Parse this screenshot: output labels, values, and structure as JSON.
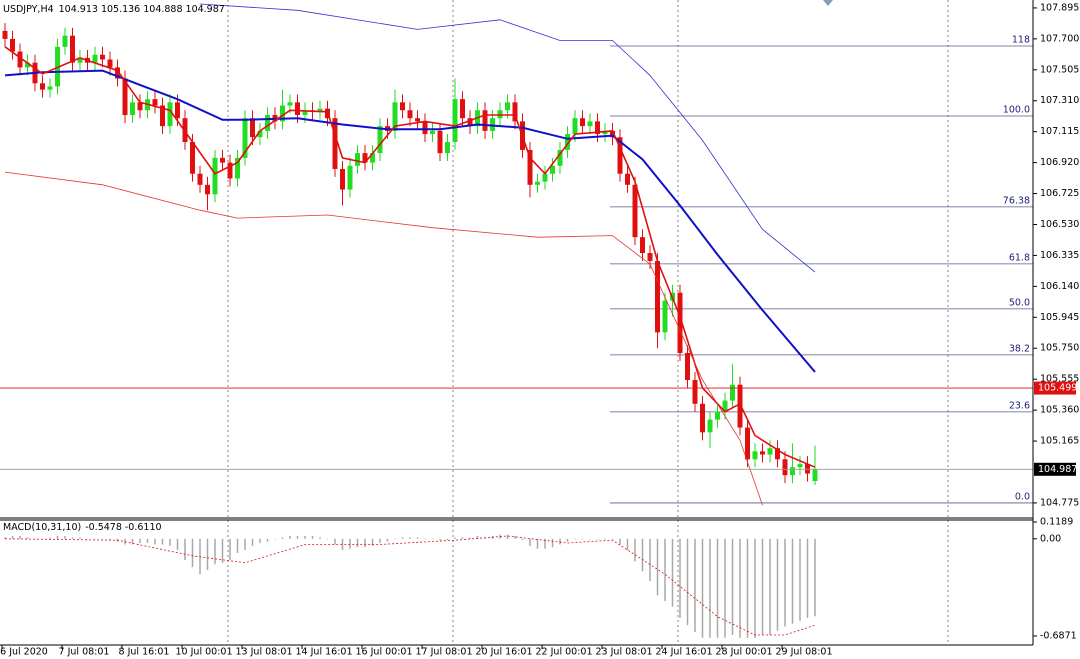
{
  "chart_data": [
    {
      "type": "candlestick",
      "title": "USDJPY,H4",
      "categories": [
        null,
        null,
        "6 Jul 2020",
        null,
        null,
        null,
        null,
        null,
        null,
        null,
        "7 Jul 08:01",
        null,
        null,
        null,
        null,
        null,
        null,
        null,
        "8 Jul 16:01",
        null,
        null,
        null,
        null,
        null,
        null,
        null,
        "10 Jul 00:01",
        null,
        null,
        null,
        null,
        null,
        null,
        null,
        "13 Jul 08:01",
        null,
        null,
        null,
        null,
        null,
        null,
        null,
        "14 Jul 16:01",
        null,
        null,
        null,
        null,
        null,
        null,
        null,
        "16 Jul 00:01",
        null,
        null,
        null,
        null,
        null,
        null,
        null,
        "17 Jul 08:01",
        null,
        null,
        null,
        null,
        null,
        null,
        null,
        "20 Jul 16:01",
        null,
        null,
        null,
        null,
        null,
        null,
        null,
        "22 Jul 00:01",
        null,
        null,
        null,
        null,
        null,
        null,
        null,
        "23 Jul 08:01",
        null,
        null,
        null,
        null,
        null,
        null,
        null,
        "24 Jul 16:01",
        null,
        null,
        null,
        null,
        null,
        null,
        null,
        "28 Jul 00:01",
        null,
        null,
        null,
        null,
        null,
        null,
        null,
        "29 Jul 08:01",
        null,
        null
      ],
      "ohlc": [
        [
          107.75,
          107.8,
          107.65,
          107.7
        ],
        [
          107.7,
          107.75,
          107.57,
          107.62
        ],
        [
          107.62,
          107.67,
          107.47,
          107.52
        ],
        [
          107.52,
          107.6,
          107.47,
          107.55
        ],
        [
          107.55,
          107.6,
          107.37,
          107.42
        ],
        [
          107.42,
          107.47,
          107.33,
          107.38
        ],
        [
          107.38,
          107.45,
          107.33,
          107.4
        ],
        [
          107.4,
          107.7,
          107.35,
          107.65
        ],
        [
          107.65,
          107.77,
          107.6,
          107.72
        ],
        [
          107.72,
          107.77,
          107.5,
          107.55
        ],
        [
          107.55,
          107.63,
          107.5,
          107.58
        ],
        [
          107.58,
          107.63,
          107.5,
          107.55
        ],
        [
          107.55,
          107.65,
          107.5,
          107.6
        ],
        [
          107.6,
          107.65,
          107.52,
          107.57
        ],
        [
          107.57,
          107.62,
          107.47,
          107.52
        ],
        [
          107.52,
          107.57,
          107.4,
          107.45
        ],
        [
          107.45,
          107.5,
          107.17,
          107.22
        ],
        [
          107.22,
          107.35,
          107.17,
          107.3
        ],
        [
          107.3,
          107.35,
          107.2,
          107.25
        ],
        [
          107.25,
          107.37,
          107.2,
          107.32
        ],
        [
          107.32,
          107.37,
          107.23,
          107.28
        ],
        [
          107.28,
          107.33,
          107.1,
          107.15
        ],
        [
          107.15,
          107.35,
          107.1,
          107.3
        ],
        [
          107.3,
          107.35,
          107.15,
          107.2
        ],
        [
          107.2,
          107.25,
          107.0,
          107.05
        ],
        [
          107.05,
          107.1,
          106.8,
          106.85
        ],
        [
          106.85,
          106.9,
          106.73,
          106.78
        ],
        [
          106.78,
          106.83,
          106.62,
          106.72
        ],
        [
          106.72,
          107.0,
          106.67,
          106.95
        ],
        [
          106.95,
          107.0,
          106.87,
          106.92
        ],
        [
          106.92,
          106.97,
          106.77,
          106.82
        ],
        [
          106.82,
          107.0,
          106.77,
          106.95
        ],
        [
          106.95,
          107.25,
          106.9,
          107.2
        ],
        [
          107.2,
          107.25,
          107.03,
          107.08
        ],
        [
          107.08,
          107.17,
          107.03,
          107.12
        ],
        [
          107.12,
          107.27,
          107.07,
          107.22
        ],
        [
          107.22,
          107.27,
          107.13,
          107.18
        ],
        [
          107.18,
          107.38,
          107.13,
          107.28
        ],
        [
          107.28,
          107.35,
          107.23,
          107.3
        ],
        [
          107.3,
          107.35,
          107.17,
          107.22
        ],
        [
          107.22,
          107.3,
          107.17,
          107.25
        ],
        [
          107.25,
          107.3,
          107.19,
          107.24
        ],
        [
          107.24,
          107.31,
          107.19,
          107.26
        ],
        [
          107.26,
          107.31,
          107.15,
          107.2
        ],
        [
          107.2,
          107.25,
          106.83,
          106.88
        ],
        [
          106.88,
          106.93,
          106.65,
          106.75
        ],
        [
          106.75,
          106.95,
          106.7,
          106.9
        ],
        [
          106.9,
          107.03,
          106.85,
          106.98
        ],
        [
          106.98,
          107.03,
          106.87,
          106.92
        ],
        [
          106.92,
          107.03,
          106.87,
          106.98
        ],
        [
          106.98,
          107.2,
          106.93,
          107.15
        ],
        [
          107.15,
          107.2,
          107.07,
          107.12
        ],
        [
          107.12,
          107.38,
          107.07,
          107.3
        ],
        [
          107.3,
          107.35,
          107.2,
          107.25
        ],
        [
          107.25,
          107.3,
          107.15,
          107.2
        ],
        [
          107.2,
          107.25,
          107.13,
          107.18
        ],
        [
          107.18,
          107.23,
          107.05,
          107.1
        ],
        [
          107.1,
          107.17,
          107.05,
          107.12
        ],
        [
          107.12,
          107.17,
          106.93,
          106.98
        ],
        [
          106.98,
          107.1,
          106.93,
          107.05
        ],
        [
          107.05,
          107.45,
          107.0,
          107.32
        ],
        [
          107.32,
          107.37,
          107.15,
          107.2
        ],
        [
          107.2,
          107.25,
          107.1,
          107.15
        ],
        [
          107.15,
          107.3,
          107.1,
          107.25
        ],
        [
          107.25,
          107.3,
          107.07,
          107.12
        ],
        [
          107.12,
          107.25,
          107.07,
          107.2
        ],
        [
          107.2,
          107.3,
          107.15,
          107.25
        ],
        [
          107.25,
          107.35,
          107.2,
          107.3
        ],
        [
          107.3,
          107.35,
          107.13,
          107.18
        ],
        [
          107.18,
          107.23,
          106.95,
          107.0
        ],
        [
          107.0,
          107.05,
          106.7,
          106.78
        ],
        [
          106.78,
          106.85,
          106.73,
          106.8
        ],
        [
          106.8,
          106.9,
          106.75,
          106.85
        ],
        [
          106.85,
          106.95,
          106.8,
          106.9
        ],
        [
          106.9,
          107.05,
          106.85,
          107.0
        ],
        [
          107.0,
          107.15,
          106.95,
          107.1
        ],
        [
          107.1,
          107.25,
          107.05,
          107.2
        ],
        [
          107.2,
          107.25,
          107.1,
          107.15
        ],
        [
          107.15,
          107.23,
          107.1,
          107.18
        ],
        [
          107.18,
          107.23,
          107.05,
          107.1
        ],
        [
          107.1,
          107.17,
          107.05,
          107.12
        ],
        [
          107.12,
          107.17,
          107.03,
          107.08
        ],
        [
          107.08,
          107.13,
          106.8,
          106.85
        ],
        [
          106.85,
          106.9,
          106.73,
          106.78
        ],
        [
          106.78,
          106.83,
          106.4,
          106.45
        ],
        [
          106.45,
          106.5,
          106.3,
          106.35
        ],
        [
          106.35,
          106.4,
          106.25,
          106.3
        ],
        [
          106.3,
          106.35,
          105.75,
          105.85
        ],
        [
          105.85,
          106.1,
          105.8,
          106.05
        ],
        [
          106.05,
          106.15,
          105.95,
          106.1
        ],
        [
          106.1,
          106.15,
          105.67,
          105.72
        ],
        [
          105.72,
          105.77,
          105.5,
          105.55
        ],
        [
          105.55,
          105.6,
          105.35,
          105.4
        ],
        [
          105.4,
          105.45,
          105.17,
          105.22
        ],
        [
          105.22,
          105.35,
          105.12,
          105.3
        ],
        [
          105.3,
          105.4,
          105.25,
          105.35
        ],
        [
          105.35,
          105.47,
          105.3,
          105.42
        ],
        [
          105.42,
          105.65,
          105.37,
          105.52
        ],
        [
          105.52,
          105.57,
          105.2,
          105.25
        ],
        [
          105.25,
          105.3,
          105.0,
          105.05
        ],
        [
          105.05,
          105.15,
          105.0,
          105.1
        ],
        [
          105.1,
          105.15,
          105.03,
          105.08
        ],
        [
          105.08,
          105.17,
          105.03,
          105.12
        ],
        [
          105.12,
          105.17,
          105.0,
          105.05
        ],
        [
          105.05,
          105.1,
          104.9,
          104.95
        ],
        [
          104.95,
          105.15,
          104.9,
          105.0
        ],
        [
          105.0,
          105.07,
          104.95,
          105.02
        ],
        [
          105.02,
          105.07,
          104.91,
          104.96
        ],
        [
          104.913,
          105.136,
          104.888,
          104.987
        ]
      ],
      "up_color": "#22dd22",
      "down_color": "#e01010",
      "lines": [
        {
          "color": "#1010c8",
          "width": 2,
          "x": [
            0,
            5,
            13,
            18,
            23,
            29,
            32,
            39,
            45,
            51,
            58,
            63,
            69,
            75,
            81,
            85,
            90,
            95,
            101,
            108
          ],
          "values": [
            107.47,
            107.49,
            107.5,
            107.41,
            107.32,
            107.19,
            107.19,
            107.2,
            107.16,
            107.13,
            107.13,
            107.16,
            107.14,
            107.07,
            107.09,
            106.94,
            106.65,
            106.34,
            105.99,
            105.6
          ]
        },
        {
          "color": "#e01010",
          "width": 1.6,
          "x": [
            0,
            5,
            10,
            15,
            18,
            22,
            25,
            28,
            31,
            34,
            38,
            43,
            45,
            48,
            52,
            56,
            60,
            64,
            68,
            70,
            72,
            76,
            81,
            84,
            87,
            90,
            93,
            96,
            98,
            100,
            104,
            108
          ],
          "values": [
            107.65,
            107.48,
            107.58,
            107.5,
            107.3,
            107.25,
            107.05,
            106.85,
            106.92,
            107.12,
            107.25,
            107.24,
            106.95,
            106.92,
            107.15,
            107.18,
            107.15,
            107.22,
            107.22,
            106.95,
            106.85,
            107.1,
            107.12,
            106.8,
            106.3,
            105.95,
            105.5,
            105.35,
            105.4,
            105.2,
            105.08,
            105.0
          ]
        },
        {
          "color": "#3030d8",
          "width": 0.8,
          "x": [
            26,
            39,
            55,
            66,
            74,
            81,
            86,
            93,
            101,
            108
          ],
          "values": [
            107.92,
            107.88,
            107.76,
            107.82,
            107.69,
            107.69,
            107.47,
            107.06,
            106.5,
            106.23
          ]
        },
        {
          "color": "#e83030",
          "width": 0.8,
          "x": [
            0,
            13,
            26,
            31,
            43,
            57,
            71,
            81,
            86,
            93,
            98,
            101
          ],
          "values": [
            106.86,
            106.78,
            106.62,
            106.57,
            106.59,
            106.51,
            106.45,
            106.46,
            106.28,
            105.55,
            105.17,
            104.76
          ]
        }
      ],
      "levels": [
        {
          "value": 107.655,
          "label": "118"
        },
        {
          "value": 107.214,
          "label": "100.0"
        },
        {
          "value": 106.641,
          "label": "76.38"
        },
        {
          "value": 106.282,
          "label": "61.8"
        },
        {
          "value": 105.998,
          "label": "50.0"
        },
        {
          "value": 105.708,
          "label": "38.2"
        },
        {
          "value": 105.349,
          "label": "23.6"
        },
        {
          "value": 104.775,
          "label": "0.0"
        }
      ],
      "price_lines": [
        {
          "value": 105.499,
          "color": "#e01010"
        },
        {
          "value": 104.987,
          "color": "#000000"
        }
      ],
      "ylim": [
        104.68,
        107.945
      ],
      "yticks": [
        107.895,
        {
          "value": 107.7,
          "label": "107.700"
        },
        107.505,
        {
          "value": 107.31,
          "label": "107.310"
        },
        107.115,
        {
          "value": 106.92,
          "label": "106.920"
        },
        106.725,
        {
          "value": 106.53,
          "label": "106.530"
        },
        106.335,
        {
          "value": 106.14,
          "label": "106.140"
        },
        105.945,
        {
          "value": 105.75,
          "label": "105.750"
        },
        105.555,
        {
          "value": 105.36,
          "label": "105.360"
        },
        105.165,
        104.775
      ]
    },
    {
      "type": "bar",
      "title": "MACD(10,31,10)",
      "color": "#a8a8a8",
      "values": [
        0.01,
        0.02,
        0.02,
        0.01,
        0.0,
        0.0,
        0.01,
        0.02,
        0.02,
        0.01,
        0.01,
        0.0,
        0.0,
        0.0,
        -0.01,
        -0.02,
        -0.04,
        -0.04,
        -0.03,
        -0.03,
        -0.04,
        -0.04,
        -0.05,
        -0.08,
        -0.15,
        -0.2,
        -0.25,
        -0.22,
        -0.18,
        -0.17,
        -0.15,
        -0.1,
        -0.08,
        -0.05,
        -0.03,
        -0.02,
        0.0,
        0.01,
        0.02,
        0.02,
        0.02,
        0.02,
        0.01,
        0.0,
        -0.04,
        -0.08,
        -0.07,
        -0.06,
        -0.06,
        -0.05,
        -0.03,
        -0.02,
        0.0,
        0.01,
        0.01,
        0.01,
        0.0,
        0.0,
        -0.01,
        -0.01,
        0.01,
        0.01,
        0.01,
        0.02,
        0.01,
        0.02,
        0.03,
        0.03,
        0.02,
        -0.01,
        -0.05,
        -0.07,
        -0.07,
        -0.06,
        -0.04,
        -0.02,
        0.0,
        0.0,
        0.0,
        0.0,
        0.0,
        0.0,
        -0.04,
        -0.08,
        -0.16,
        -0.23,
        -0.3,
        -0.4,
        -0.44,
        -0.48,
        -0.56,
        -0.61,
        -0.66,
        -0.7,
        -0.7,
        -0.7,
        -0.7,
        -0.68,
        -0.7,
        -0.7,
        -0.7,
        -0.68,
        -0.68,
        -0.65,
        -0.62,
        -0.6,
        -0.58,
        -0.56,
        -0.5478
      ],
      "signal": {
        "color": "#e01010",
        "x": [
          0,
          15,
          25,
          32,
          40,
          50,
          60,
          67,
          75,
          81,
          88,
          95,
          100,
          104,
          108
        ],
        "values": [
          0.0,
          -0.01,
          -0.12,
          -0.17,
          -0.04,
          -0.04,
          -0.01,
          0.02,
          -0.03,
          -0.01,
          -0.25,
          -0.55,
          -0.68,
          -0.68,
          -0.611
        ],
        "value_labels": [
          null,
          null,
          null,
          null,
          null,
          null,
          null,
          null,
          null,
          null,
          null,
          null,
          null,
          null,
          "-0.6110"
        ]
      },
      "ylim": [
        -0.751,
        0.133
      ],
      "yticks": [
        0.1189,
        {
          "value": 0,
          "label": "0.00"
        },
        -0.6871
      ]
    }
  ]
}
